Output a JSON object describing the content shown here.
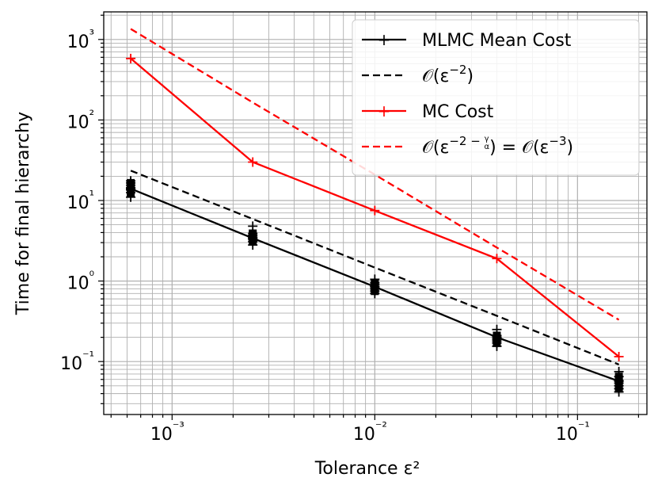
{
  "chart_data": {
    "type": "line",
    "scale": {
      "x": "log",
      "y": "log"
    },
    "xlim": [
      0.00046,
      0.22
    ],
    "ylim": [
      0.022,
      2200
    ],
    "xlabel": "Tolerance ε²",
    "ylabel": "Time for final hierarchy",
    "x_ticks": [
      {
        "value": 0.001,
        "label": "10⁻³"
      },
      {
        "value": 0.01,
        "label": "10⁻²"
      },
      {
        "value": 0.1,
        "label": "10⁻¹"
      }
    ],
    "y_ticks": [
      {
        "value": 0.1,
        "label": "10⁻¹"
      },
      {
        "value": 1,
        "label": "10⁰"
      },
      {
        "value": 10,
        "label": "10¹"
      },
      {
        "value": 100,
        "label": "10²"
      },
      {
        "value": 1000,
        "label": "10³"
      }
    ],
    "grid": true,
    "legend_position": "top-right",
    "series": [
      {
        "name": "MLMC Mean Cost",
        "color": "#000000",
        "dash": "solid",
        "marker": "+",
        "x": [
          0.000625,
          0.0025,
          0.01,
          0.04,
          0.16
        ],
        "y": [
          14,
          3.4,
          0.85,
          0.2,
          0.057
        ]
      },
      {
        "name": "𝒪(ε⁻²)",
        "color": "#000000",
        "dash": "dashed",
        "marker": "none",
        "x": [
          0.000625,
          0.0025,
          0.01,
          0.04,
          0.16
        ],
        "y": [
          23.5,
          5.9,
          1.47,
          0.37,
          0.092
        ]
      },
      {
        "name": "MC Cost",
        "color": "#ff0000",
        "dash": "solid",
        "marker": "+",
        "x": [
          0.000625,
          0.0025,
          0.01,
          0.04,
          0.16
        ],
        "y": [
          580,
          30,
          7.5,
          1.9,
          0.115
        ]
      },
      {
        "name": "𝒪(ε^(−2−γ/α)) = 𝒪(ε⁻³)",
        "color": "#ff0000",
        "dash": "dashed",
        "marker": "none",
        "x": [
          0.000625,
          0.0025,
          0.01,
          0.04,
          0.16
        ],
        "y": [
          1350,
          165,
          21,
          2.6,
          0.33
        ]
      }
    ],
    "sample_points": [
      {
        "x": 0.000625,
        "y": [
          11,
          12.5,
          13.5,
          14.5,
          15.5,
          16.5,
          17.5
        ]
      },
      {
        "x": 0.0025,
        "y": [
          2.8,
          3.1,
          3.3,
          3.5,
          3.7,
          3.9,
          4.8
        ]
      },
      {
        "x": 0.01,
        "y": [
          0.7,
          0.75,
          0.8,
          0.85,
          0.9,
          0.95,
          1.05
        ]
      },
      {
        "x": 0.04,
        "y": [
          0.155,
          0.17,
          0.18,
          0.19,
          0.2,
          0.21,
          0.25
        ]
      },
      {
        "x": 0.16,
        "y": [
          0.042,
          0.046,
          0.05,
          0.054,
          0.058,
          0.065,
          0.075
        ]
      }
    ],
    "legend": [
      {
        "label_prefix": "MLMC Mean Cost",
        "series_index": 0
      },
      {
        "label_prefix": "𝒪(ε",
        "label_sup": "−2",
        "label_suffix": ")",
        "series_index": 1
      },
      {
        "label_prefix": "MC Cost",
        "series_index": 2
      },
      {
        "label_prefix": "𝒪(ε",
        "label_sup": "−2 − ",
        "label_frac_num": "γ",
        "label_frac_den": "α",
        "label_suffix": ") = 𝒪(ε",
        "label_sup2": "−3",
        "label_suffix2": ")",
        "series_index": 3
      }
    ]
  }
}
